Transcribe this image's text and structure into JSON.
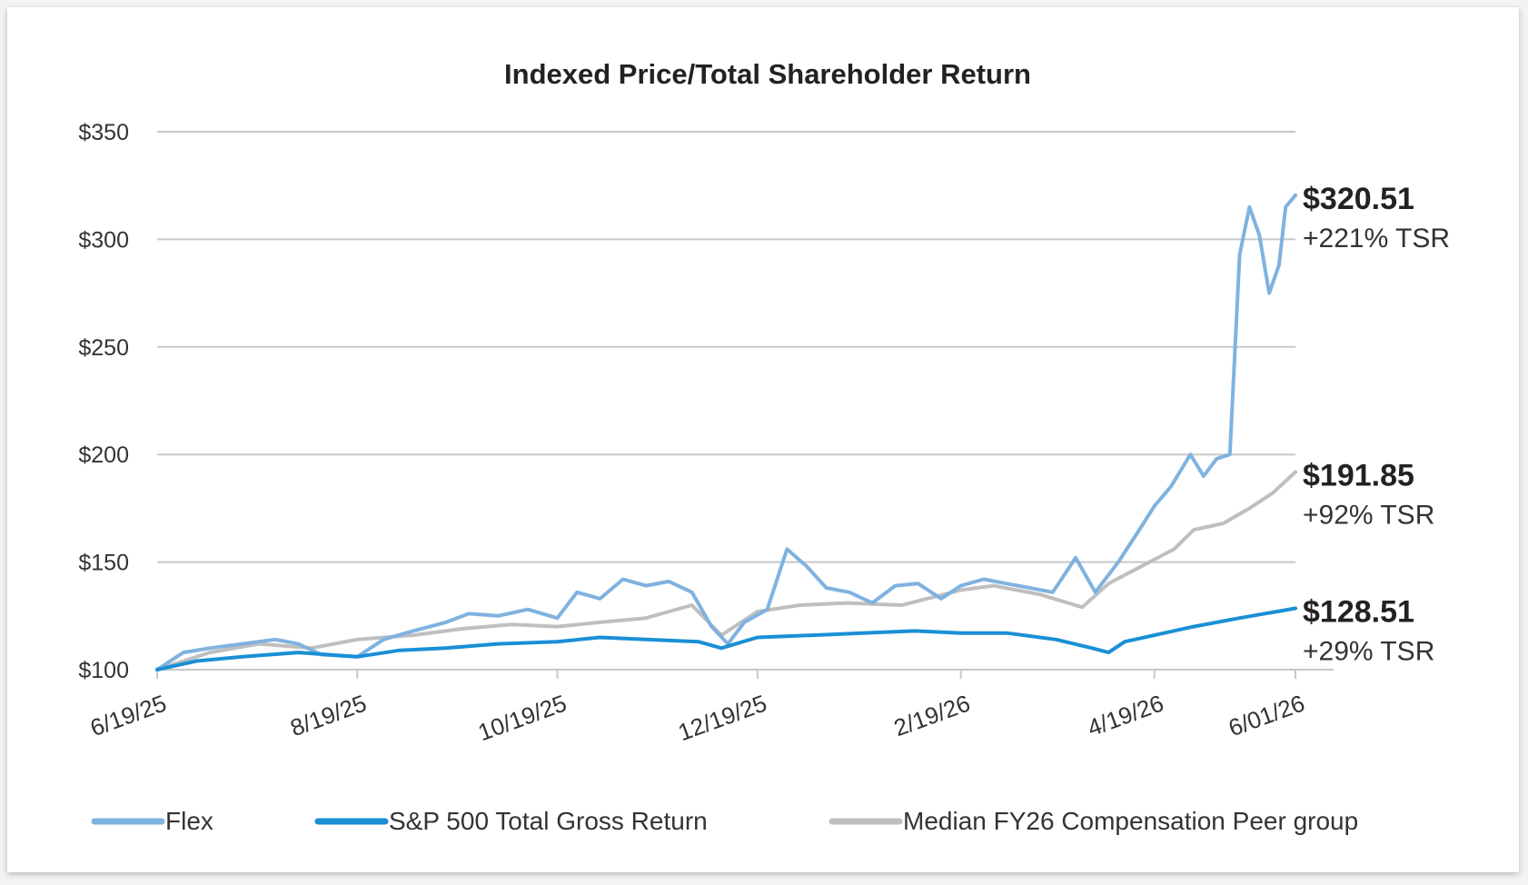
{
  "chart_data": {
    "type": "line",
    "title": "Indexed Price/Total Shareholder Return",
    "xlabel": "",
    "ylabel": "",
    "ylim": [
      100,
      350
    ],
    "yticks": [
      100,
      150,
      200,
      250,
      300,
      350
    ],
    "ytick_labels": [
      "$100",
      "$150",
      "$200",
      "$250",
      "$300",
      "$350"
    ],
    "xlim": [
      "2025-06-19",
      "2026-06-01"
    ],
    "xticks": [
      "2025-06-19",
      "2025-08-19",
      "2025-10-19",
      "2025-12-19",
      "2026-02-19",
      "2026-04-19",
      "2026-06-01"
    ],
    "xtick_labels": [
      "6/19/25",
      "8/19/25",
      "10/19/25",
      "12/19/25",
      "2/19/26",
      "4/19/26",
      "6/01/26"
    ],
    "grid": true,
    "legend_position": "bottom",
    "series": [
      {
        "name": "Flex",
        "color": "#7fb2e0",
        "end_label": "$320.51",
        "end_sublabel": "+221% TSR",
        "points": [
          [
            "2025-06-19",
            100
          ],
          [
            "2025-06-27",
            108
          ],
          [
            "2025-07-05",
            110
          ],
          [
            "2025-07-15",
            112
          ],
          [
            "2025-07-25",
            114
          ],
          [
            "2025-08-01",
            112
          ],
          [
            "2025-08-08",
            107
          ],
          [
            "2025-08-19",
            106
          ],
          [
            "2025-08-27",
            114
          ],
          [
            "2025-09-05",
            118
          ],
          [
            "2025-09-15",
            122
          ],
          [
            "2025-09-22",
            126
          ],
          [
            "2025-10-01",
            125
          ],
          [
            "2025-10-10",
            128
          ],
          [
            "2025-10-19",
            124
          ],
          [
            "2025-10-25",
            136
          ],
          [
            "2025-11-01",
            133
          ],
          [
            "2025-11-08",
            142
          ],
          [
            "2025-11-15",
            139
          ],
          [
            "2025-11-22",
            141
          ],
          [
            "2025-11-29",
            136
          ],
          [
            "2025-12-05",
            120
          ],
          [
            "2025-12-10",
            112
          ],
          [
            "2025-12-15",
            122
          ],
          [
            "2025-12-22",
            128
          ],
          [
            "2025-12-28",
            156
          ],
          [
            "2026-01-03",
            148
          ],
          [
            "2026-01-09",
            138
          ],
          [
            "2026-01-16",
            136
          ],
          [
            "2026-01-23",
            131
          ],
          [
            "2026-01-30",
            139
          ],
          [
            "2026-02-06",
            140
          ],
          [
            "2026-02-13",
            133
          ],
          [
            "2026-02-19",
            139
          ],
          [
            "2026-02-26",
            142
          ],
          [
            "2026-03-05",
            140
          ],
          [
            "2026-03-12",
            138
          ],
          [
            "2026-03-19",
            136
          ],
          [
            "2026-03-26",
            152
          ],
          [
            "2026-04-01",
            136
          ],
          [
            "2026-04-08",
            150
          ],
          [
            "2026-04-14",
            164
          ],
          [
            "2026-04-19",
            176
          ],
          [
            "2026-04-24",
            185
          ],
          [
            "2026-04-30",
            200
          ],
          [
            "2026-05-04",
            190
          ],
          [
            "2026-05-08",
            198
          ],
          [
            "2026-05-12",
            200
          ],
          [
            "2026-05-15",
            293
          ],
          [
            "2026-05-18",
            315
          ],
          [
            "2026-05-21",
            302
          ],
          [
            "2026-05-24",
            275
          ],
          [
            "2026-05-27",
            288
          ],
          [
            "2026-05-29",
            315
          ],
          [
            "2026-06-01",
            320.51
          ]
        ]
      },
      {
        "name": "S&P 500 Total Gross Return",
        "color": "#1a8fd6",
        "end_label": "$128.51",
        "end_sublabel": "+29% TSR",
        "points": [
          [
            "2025-06-19",
            100
          ],
          [
            "2025-07-01",
            104
          ],
          [
            "2025-07-15",
            106
          ],
          [
            "2025-08-01",
            108
          ],
          [
            "2025-08-19",
            106
          ],
          [
            "2025-09-01",
            109
          ],
          [
            "2025-09-15",
            110
          ],
          [
            "2025-10-01",
            112
          ],
          [
            "2025-10-19",
            113
          ],
          [
            "2025-11-01",
            115
          ],
          [
            "2025-11-15",
            114
          ],
          [
            "2025-12-01",
            113
          ],
          [
            "2025-12-08",
            110
          ],
          [
            "2025-12-19",
            115
          ],
          [
            "2026-01-05",
            116
          ],
          [
            "2026-01-20",
            117
          ],
          [
            "2026-02-05",
            118
          ],
          [
            "2026-02-19",
            117
          ],
          [
            "2026-03-05",
            117
          ],
          [
            "2026-03-20",
            114
          ],
          [
            "2026-03-31",
            110
          ],
          [
            "2026-04-05",
            108
          ],
          [
            "2026-04-10",
            113
          ],
          [
            "2026-04-19",
            116
          ],
          [
            "2026-05-01",
            120
          ],
          [
            "2026-05-15",
            124
          ],
          [
            "2026-06-01",
            128.51
          ]
        ]
      },
      {
        "name": "Median FY26 Compensation Peer group",
        "color": "#bfbfbf",
        "end_label": "$191.85",
        "end_sublabel": "+92% TSR",
        "points": [
          [
            "2025-06-19",
            100
          ],
          [
            "2025-07-05",
            108
          ],
          [
            "2025-07-20",
            112
          ],
          [
            "2025-08-05",
            110
          ],
          [
            "2025-08-19",
            114
          ],
          [
            "2025-09-05",
            116
          ],
          [
            "2025-09-20",
            119
          ],
          [
            "2025-10-05",
            121
          ],
          [
            "2025-10-19",
            120
          ],
          [
            "2025-11-01",
            122
          ],
          [
            "2025-11-15",
            124
          ],
          [
            "2025-11-29",
            130
          ],
          [
            "2025-12-08",
            116
          ],
          [
            "2025-12-19",
            127
          ],
          [
            "2026-01-01",
            130
          ],
          [
            "2026-01-15",
            131
          ],
          [
            "2026-02-01",
            130
          ],
          [
            "2026-02-19",
            137
          ],
          [
            "2026-03-01",
            139
          ],
          [
            "2026-03-15",
            135
          ],
          [
            "2026-03-28",
            129
          ],
          [
            "2026-04-05",
            140
          ],
          [
            "2026-04-15",
            148
          ],
          [
            "2026-04-25",
            156
          ],
          [
            "2026-05-01",
            165
          ],
          [
            "2026-05-10",
            168
          ],
          [
            "2026-05-18",
            175
          ],
          [
            "2026-05-25",
            182
          ],
          [
            "2026-06-01",
            191.85
          ]
        ]
      }
    ]
  }
}
